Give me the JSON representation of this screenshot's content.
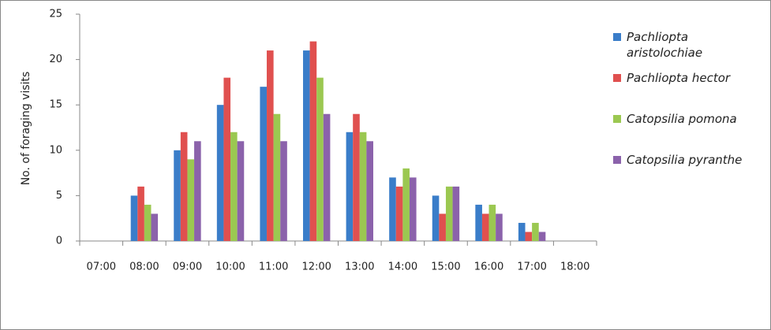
{
  "chart_data": {
    "type": "bar",
    "y_label": "No. of foraging visits",
    "categories": [
      "07:00",
      "08:00",
      "09:00",
      "10:00",
      "11:00",
      "12:00",
      "13:00",
      "14:00",
      "15:00",
      "16:00",
      "17:00",
      "18:00"
    ],
    "series": [
      {
        "name": "Pachliopta aristolochiae",
        "color": "#3a7dc9",
        "values": [
          0,
          5,
          10,
          15,
          17,
          21,
          12,
          7,
          5,
          4,
          2,
          0
        ]
      },
      {
        "name": "Pachliopta hector",
        "color": "#e0504f",
        "values": [
          0,
          6,
          12,
          18,
          21,
          22,
          14,
          6,
          3,
          3,
          1,
          0
        ]
      },
      {
        "name": "Catopsilia pomona",
        "color": "#9bc851",
        "values": [
          0,
          4,
          9,
          12,
          14,
          18,
          12,
          8,
          6,
          4,
          2,
          0
        ]
      },
      {
        "name": "Catopsilia pyranthe",
        "color": "#8b62ab",
        "values": [
          0,
          3,
          11,
          11,
          11,
          14,
          11,
          7,
          6,
          3,
          1,
          0
        ]
      }
    ],
    "ylim": [
      0,
      25
    ],
    "yticks": [
      0,
      5,
      10,
      15,
      20,
      25
    ],
    "grid": false
  }
}
